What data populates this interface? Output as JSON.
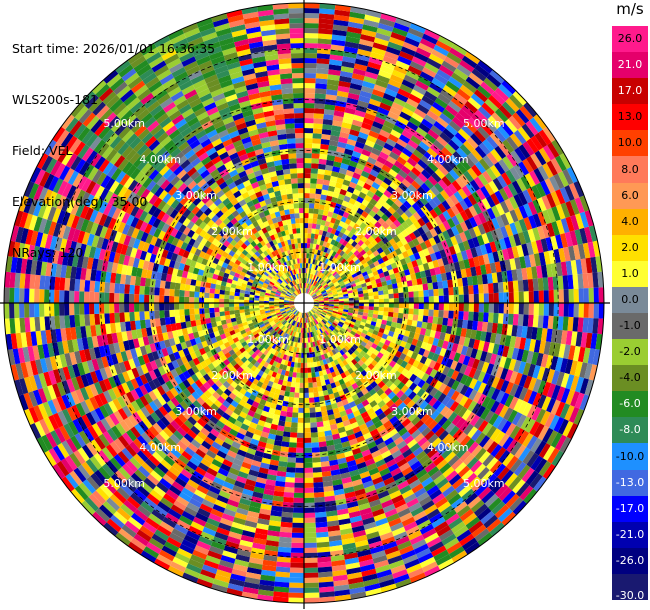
{
  "header": {
    "start_time": "Start time: 2026/01/01 16:36:35",
    "instrument": "WLS200s-181",
    "field": "Field: VEL",
    "elevation": "Elevation(deg): 35.00",
    "nrays": "NRays: 120"
  },
  "chart_data": {
    "type": "heatmap",
    "projection": "polar-ppi",
    "field": "VEL",
    "unit": "m/s",
    "n_rays": 120,
    "elevation_deg": 35.0,
    "range_rings_km": [
      1.0,
      2.0,
      3.0,
      4.0,
      5.0
    ],
    "range_ring_labels": [
      "1.00km",
      "2.00km",
      "3.00km",
      "4.00km",
      "5.00km"
    ],
    "max_range_km": 5.9,
    "colorbar": {
      "label": "m/s",
      "ticks": [
        "26.0",
        "21.0",
        "17.0",
        "13.0",
        "10.0",
        "8.0",
        "6.0",
        "4.0",
        "2.0",
        "1.0",
        "0.0",
        "-1.0",
        "-2.0",
        "-4.0",
        "-6.0",
        "-8.0",
        "-10.0",
        "-13.0",
        "-17.0",
        "-21.0",
        "-26.0",
        "-30.0"
      ],
      "colors": [
        "#ff1a8c",
        "#e5006b",
        "#c80000",
        "#ff0000",
        "#ff4000",
        "#ff7a5a",
        "#ff9955",
        "#ffb000",
        "#ffe000",
        "#ffff33",
        "#7a8a99",
        "#6a6a6a",
        "#9acd32",
        "#6b8e23",
        "#228b22",
        "#2e8b57",
        "#1e90ff",
        "#4169e1",
        "#0000ff",
        "#0000b0",
        "#000080",
        "#191970"
      ]
    },
    "pattern_note": "Near range (<2.5 km) dominated by yellow/green low velocities; farther range is noisy mixed colors; olive/green sector at top-left far range."
  }
}
